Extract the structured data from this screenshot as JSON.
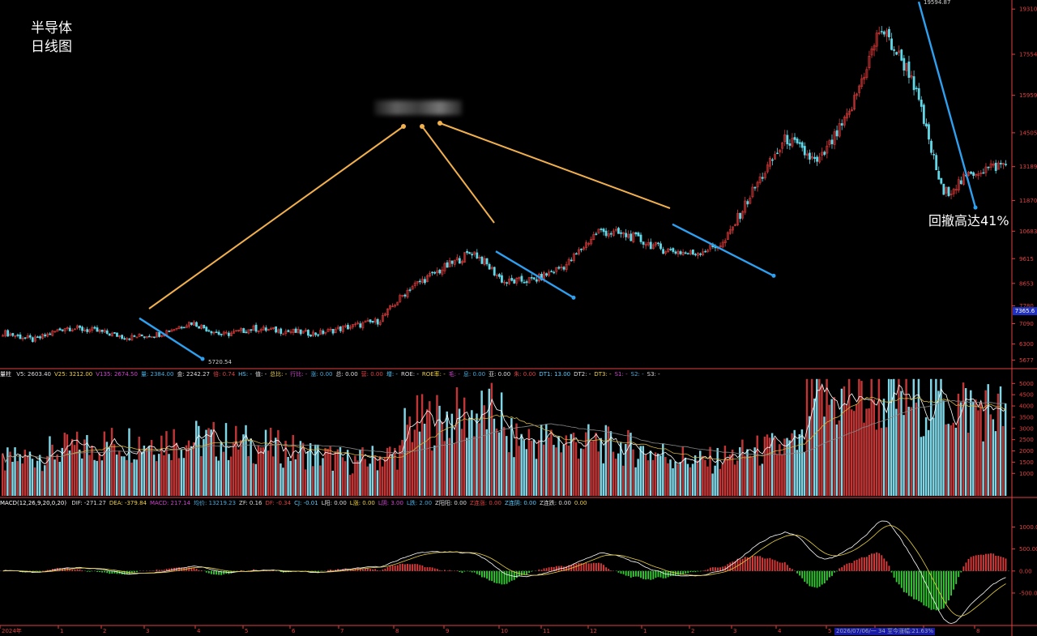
{
  "title": {
    "line1": "半导体",
    "line2": "日线图"
  },
  "annotation": "回撤高达41%",
  "volume_indicator": {
    "label": "量柱",
    "items": [
      "V5: 2603.40",
      "V25: 3212.00",
      "V135: 2674.50",
      "量: 2384.00",
      "金: 2242.27",
      "倍: 0.74",
      "HS: -",
      "值: -",
      "总比: -",
      "行比: -",
      "涨: 0.00",
      "总: 0.00",
      "营: 0.00",
      "增: -",
      "ROE: -",
      "ROE率: -",
      "毛: -",
      "息: 0.00",
      "亚: 0.00",
      "朱: 0.00",
      "DT1: 13.00",
      "DT2: -",
      "DT3: -",
      "S1: -",
      "S2: -",
      "S3: -"
    ]
  },
  "macd_indicator": {
    "label": "MACD(12,26,9,20,0,20)",
    "items": [
      "DIF: -271.27",
      "DEA: -379.84",
      "MACD: 217.14",
      "均价: 13219.23",
      "ZF: 0.16",
      "DF: -0.34",
      "CJ: -0.01",
      "L阳: 0.00",
      "L涨: 0.00",
      "L阴: 3.00",
      "L跌: 2.00",
      "Z阳阳: 0.00",
      "Z连涨: 0.00",
      "Z连阴: 0.00",
      "Z连跌: 0.00",
      "0.00"
    ]
  },
  "status_bar": "2026/07/06/一 34 至今涨幅:21.63%",
  "current_price_tag": "7365.6",
  "colors": {
    "up": "#e03a3a",
    "down": "#5fd8e8",
    "trend_up": "#f2b04d",
    "trend_down": "#2ea0f0",
    "axis": "#e04040"
  },
  "chart_data": [
    {
      "type": "candlestick",
      "title": "",
      "y_ticks": [
        5677,
        6300,
        7090,
        7780,
        8653,
        9615,
        10683,
        11870,
        13189,
        14505,
        15959,
        17554,
        19310
      ],
      "ylim": [
        5500,
        19600
      ],
      "x_ticks": [
        "2024年",
        "1",
        "2",
        "3",
        "4",
        "5",
        "6",
        "7",
        "8",
        "9",
        "10",
        "11",
        "12",
        "1",
        "2",
        "3",
        "4",
        "5",
        "6",
        "7",
        "8"
      ],
      "price_labels": [
        {
          "text": "5720.54",
          "value": 5720.54
        },
        {
          "text": "19594.87",
          "value": 19594.87
        }
      ],
      "trend_segments_down": [
        {
          "from_index": 2,
          "to_index": 3,
          "peak": 7300,
          "trough": 5720
        },
        {
          "from_index": 9,
          "to_index": 10,
          "peak": 9900,
          "trough": 8100
        },
        {
          "from_index": 12,
          "to_index": 16,
          "peak": 10950,
          "trough": 8950
        },
        {
          "from_index": 19,
          "to_index": 20,
          "peak": 19594.87,
          "trough": 11600
        }
      ],
      "close_path": [
        6750,
        6450,
        6950,
        6800,
        6550,
        6700,
        7150,
        6650,
        6900,
        6800,
        6700,
        6950,
        7200,
        8500,
        9200,
        9900,
        8700,
        8800,
        9400,
        10700,
        10500,
        10000,
        9800,
        10200,
        12400,
        14300,
        13300,
        15200,
        18600,
        16700,
        12100,
        13000,
        13300
      ]
    },
    {
      "type": "bar",
      "title": "量柱",
      "y_ticks": [
        1000,
        1500,
        2000,
        2500,
        3000,
        3500,
        4000,
        4500,
        5000
      ],
      "ylim": [
        0,
        5300
      ]
    },
    {
      "type": "bar",
      "title": "MACD(12,26,9,20,0,20)",
      "y_ticks": [
        -500,
        0,
        500,
        1000
      ],
      "ylim": [
        -1200,
        1450
      ]
    }
  ]
}
